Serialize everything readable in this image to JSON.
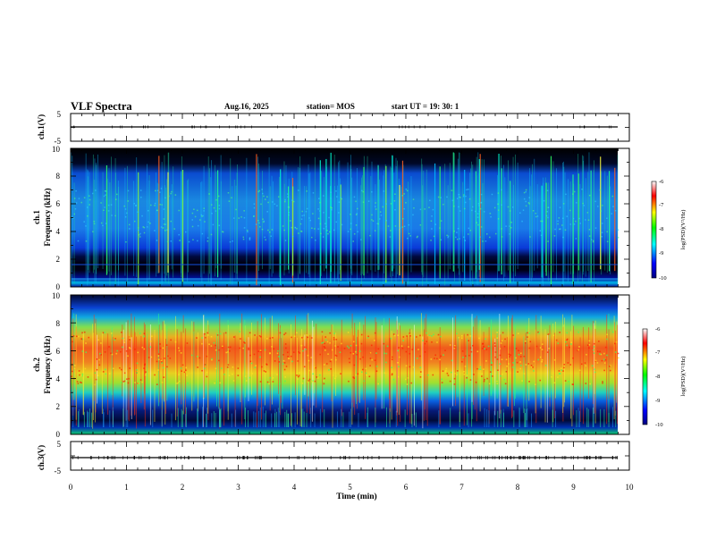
{
  "header": {
    "title": "VLF Spectra",
    "date": "Aug.16, 2025",
    "station": "station= MOS",
    "start_ut": "start  UT =   19: 30: 1"
  },
  "colors": {
    "colormap": [
      "#000080",
      "#0000ff",
      "#00ffff",
      "#00ff00",
      "#ffff00",
      "#ff0000",
      "#ffffff"
    ]
  },
  "chart_data": [
    {
      "type": "line",
      "panel": "ch.1 waveform",
      "ylabel": "ch.1(V)",
      "ylim": [
        -5,
        5
      ],
      "yticks": [
        "5",
        "-5"
      ],
      "series": [
        {
          "x": [
            0,
            9.8
          ],
          "y": [
            0,
            0
          ]
        }
      ]
    },
    {
      "type": "heatmap",
      "panel": "ch.1 spectrogram",
      "ylabel": "ch.1\nFrequency (kHz)",
      "ylim": [
        0,
        10
      ],
      "yticks": [
        "0",
        "2",
        "4",
        "6",
        "8",
        "10"
      ],
      "data_xlim": [
        0,
        9.8
      ],
      "lines_khz": [
        0.6,
        1.65
      ],
      "colorbar": {
        "label": "log(PSD)(V²/Hz)",
        "range": [
          -10,
          -6
        ],
        "ticks": [
          "-6",
          "-7",
          "-8",
          "-9",
          "-10"
        ]
      }
    },
    {
      "type": "heatmap",
      "panel": "ch.2 spectrogram",
      "ylabel": "ch.2\nFrequency (kHz)",
      "ylim": [
        0,
        10
      ],
      "yticks": [
        "0",
        "2",
        "4",
        "6",
        "8",
        "10"
      ],
      "data_xlim": [
        0,
        9.8
      ],
      "colorbar": {
        "label": "log(PSD)(V²/Hz)",
        "range": [
          -10,
          -6
        ],
        "ticks": [
          "-6",
          "-7",
          "-8",
          "-9",
          "-10"
        ]
      }
    },
    {
      "type": "line",
      "panel": "ch.3 waveform",
      "ylabel": "ch.3(V)",
      "ylim": [
        -5,
        5
      ],
      "yticks": [
        "5",
        "-5"
      ],
      "xlabel": "Time  (min)",
      "xlim": [
        0,
        10
      ],
      "xticks": [
        "0",
        "1",
        "2",
        "3",
        "4",
        "5",
        "6",
        "7",
        "8",
        "9",
        "10"
      ],
      "series": [
        {
          "x": [
            0,
            9.8
          ],
          "y": [
            0,
            0
          ]
        }
      ]
    }
  ]
}
